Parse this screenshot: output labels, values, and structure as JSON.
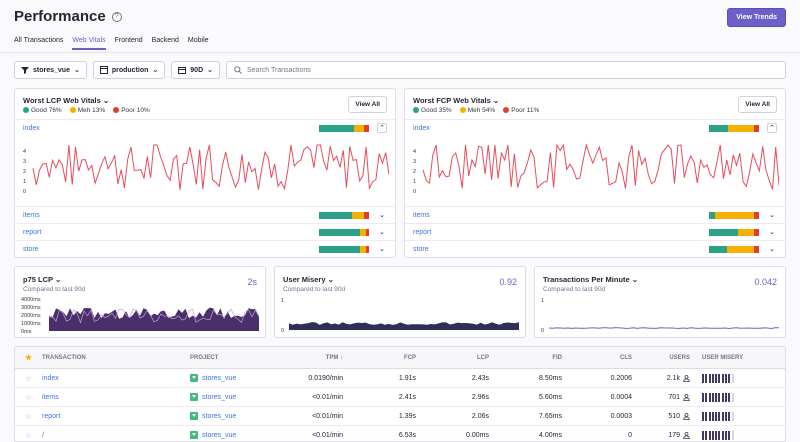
{
  "header": {
    "title": "Performance",
    "help_icon": "help-icon",
    "view_trends": "View Trends"
  },
  "tabs": [
    "All Transactions",
    "Web Vitals",
    "Frontend",
    "Backend",
    "Mobile"
  ],
  "active_tab": "Web Vitals",
  "filters": {
    "project": "stores_vue",
    "environment": "production",
    "period": "90D",
    "search_placeholder": "Search Transactions"
  },
  "colors": {
    "good": "#2ba185",
    "meh": "#f5b000",
    "poor": "#e03e2f",
    "accent": "#6c5fc7",
    "link": "#3d74db"
  },
  "lcp_card": {
    "title": "Worst LCP Web Vitals",
    "view_all": "View All",
    "legend": {
      "good": "Good 76%",
      "meh": "Meh 13%",
      "poor": "Poor 10%"
    },
    "rows": [
      {
        "name": "index",
        "good": 0.7,
        "meh": 0.2,
        "poor": 0.1
      },
      {
        "name": "items",
        "good": 0.65,
        "meh": 0.25,
        "poor": 0.1
      },
      {
        "name": "report",
        "good": 0.82,
        "meh": 0.12,
        "poor": 0.06
      },
      {
        "name": "store",
        "good": 0.82,
        "meh": 0.12,
        "poor": 0.06
      }
    ],
    "chart_ticks": [
      "4",
      "3",
      "2",
      "1",
      "0"
    ]
  },
  "fcp_card": {
    "title": "Worst FCP Web Vitals",
    "view_all": "View All",
    "legend": {
      "good": "Good 35%",
      "meh": "Meh 54%",
      "poor": "Poor 11%"
    },
    "rows": [
      {
        "name": "index",
        "good": 0.38,
        "meh": 0.52,
        "poor": 0.1
      },
      {
        "name": "items",
        "good": 0.12,
        "meh": 0.78,
        "poor": 0.1
      },
      {
        "name": "report",
        "good": 0.58,
        "meh": 0.32,
        "poor": 0.1
      },
      {
        "name": "store",
        "good": 0.36,
        "meh": 0.54,
        "poor": 0.1
      }
    ],
    "chart_ticks": [
      "4",
      "3",
      "2",
      "1",
      "0"
    ]
  },
  "mini_cards": [
    {
      "title": "p75 LCP",
      "sub": "Compared to last 90d",
      "value": "2s",
      "ticks": [
        "4000ms",
        "3000ms",
        "2000ms",
        "1000ms",
        "0ms"
      ]
    },
    {
      "title": "User Misery",
      "sub": "Compared to last 90d",
      "value": "0.92",
      "ticks": [
        "1",
        "0"
      ]
    },
    {
      "title": "Transactions Per Minute",
      "sub": "Compared to last 90d",
      "value": "0.042",
      "ticks": [
        "1",
        "0"
      ]
    }
  ],
  "table": {
    "headers": [
      "Transaction",
      "Project",
      "TPM ↓",
      "FCP",
      "LCP",
      "FID",
      "CLS",
      "Users",
      "User Misery"
    ],
    "rows": [
      {
        "transaction": "index",
        "project": "stores_vue",
        "tpm": "0.0190/min",
        "fcp": "1.91s",
        "lcp": "2.43s",
        "fid": "8.50ms",
        "cls": "0.2006",
        "users": "2.1k",
        "misery": 9
      },
      {
        "transaction": "items",
        "project": "stores_vue",
        "tpm": "<0.01/min",
        "fcp": "2.41s",
        "lcp": "2.96s",
        "fid": "5.60ms",
        "cls": "0.0004",
        "users": "701",
        "misery": 9
      },
      {
        "transaction": "report",
        "project": "stores_vue",
        "tpm": "<0.01/min",
        "fcp": "1.39s",
        "lcp": "2.06s",
        "fid": "7.65ms",
        "cls": "0.0003",
        "users": "510",
        "misery": 9
      },
      {
        "transaction": "/",
        "project": "stores_vue",
        "tpm": "<0.01/min",
        "fcp": "6.53s",
        "lcp": "0.00ms",
        "fid": "4.00ms",
        "cls": "0",
        "users": "179",
        "misery": 9
      }
    ]
  }
}
